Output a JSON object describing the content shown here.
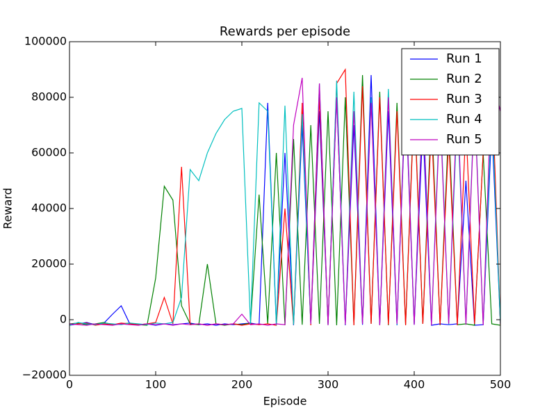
{
  "chart_data": {
    "type": "line",
    "title": "Rewards per episode",
    "x_label": "Episode",
    "y_label": "Reward",
    "x": [
      0,
      10,
      20,
      30,
      40,
      50,
      60,
      70,
      80,
      90,
      100,
      110,
      120,
      130,
      140,
      150,
      160,
      170,
      180,
      190,
      200,
      210,
      220,
      230,
      240,
      250,
      260,
      270,
      280,
      290,
      300,
      310,
      320,
      330,
      340,
      350,
      360,
      370,
      380,
      390,
      400,
      410,
      420,
      430,
      440,
      450,
      460,
      470,
      480,
      490,
      500
    ],
    "series": [
      {
        "name": "Run 1",
        "color": "#0000ff",
        "values": [
          -2000,
          -1500,
          -1000,
          -1800,
          -1200,
          2000,
          5000,
          -1500,
          -1800,
          -1500,
          -2000,
          -1500,
          -1800,
          -1500,
          -1200,
          -1800,
          -1500,
          -2000,
          -1500,
          -1800,
          -1500,
          -1200,
          -1800,
          78000,
          -1500,
          60000,
          -2000,
          70000,
          -1800,
          75000,
          -1500,
          80000,
          -2000,
          70000,
          -1800,
          88000,
          -1500,
          75000,
          -2000,
          80000,
          -1800,
          70000,
          -2000,
          -1500,
          -1800,
          -1500,
          50000,
          -2000,
          -1800,
          70000,
          -1500
        ]
      },
      {
        "name": "Run 2",
        "color": "#008000",
        "values": [
          -1500,
          -1200,
          -1800,
          -1500,
          -1000,
          -1800,
          -1500,
          -1200,
          -1800,
          -2000,
          15000,
          48000,
          43000,
          5000,
          -1500,
          -1800,
          20000,
          -1500,
          -2000,
          -1500,
          -1800,
          -1200,
          45000,
          -1500,
          60000,
          -2000,
          65000,
          -1800,
          70000,
          -1500,
          75000,
          -2000,
          80000,
          -1800,
          88000,
          -1500,
          82000,
          -2000,
          78000,
          -1800,
          80000,
          -1500,
          75000,
          -2000,
          70000,
          -1800,
          -1500,
          -2000,
          60000,
          -1500,
          -2000
        ]
      },
      {
        "name": "Run 3",
        "color": "#ff0000",
        "values": [
          -1800,
          -1500,
          -1200,
          -2000,
          -1500,
          -1800,
          -1200,
          -1500,
          -1800,
          -1500,
          -1000,
          8000,
          -1500,
          55000,
          -1800,
          -1500,
          -2000,
          -1500,
          -1800,
          -1500,
          -2000,
          -1500,
          -1800,
          -1500,
          -2000,
          40000,
          -1800,
          78000,
          -2000,
          80000,
          -1500,
          85000,
          90000,
          -2000,
          84000,
          -1500,
          80000,
          -1800,
          75000,
          -2000,
          78000,
          -1500,
          70000,
          -1800,
          65000,
          -2000,
          70000,
          -1500,
          60000,
          87000,
          -2000
        ]
      },
      {
        "name": "Run 4",
        "color": "#00bfbf",
        "values": [
          -2000,
          -1000,
          -1500,
          -1800,
          -1200,
          -1500,
          -1800,
          -1200,
          -1500,
          -1800,
          -1200,
          -1500,
          -1000,
          8000,
          54000,
          50000,
          60000,
          67000,
          72000,
          75000,
          76000,
          -1500,
          78000,
          75000,
          -2000,
          77000,
          -1800,
          74000,
          -1500,
          85000,
          -2000,
          86000,
          -1800,
          82000,
          -1500,
          80000,
          -2000,
          83000,
          -1800,
          84000,
          -1500,
          80000,
          -2000,
          78000,
          -1800,
          75000,
          -1500,
          80000,
          -2000,
          76000,
          -1500
        ]
      },
      {
        "name": "Run 5",
        "color": "#bf00bf",
        "values": [
          -1500,
          -1800,
          -2000,
          -1500,
          -1800,
          -2000,
          -1500,
          -1800,
          -2000,
          -1500,
          -1800,
          -1500,
          -2000,
          -1500,
          -1800,
          -1500,
          -2000,
          -1500,
          -1800,
          -1500,
          2000,
          -1800,
          -1500,
          -2000,
          -1500,
          -1800,
          70000,
          87000,
          -1500,
          85000,
          -2000,
          80000,
          -1800,
          75000,
          -1500,
          78000,
          -2000,
          80000,
          -1500,
          82000,
          -1800,
          78000,
          -2000,
          75000,
          -1500,
          80000,
          -1800,
          78000,
          -2000,
          88000,
          75000
        ]
      }
    ],
    "xlim": [
      0,
      500
    ],
    "xticks": [
      0,
      100,
      200,
      300,
      400,
      500
    ],
    "ylim": [
      -20000,
      100000
    ],
    "yticks": [
      {
        "value": -20000,
        "label": "−20000"
      },
      0,
      20000,
      40000,
      60000,
      80000,
      100000
    ],
    "legend": "upper right"
  }
}
